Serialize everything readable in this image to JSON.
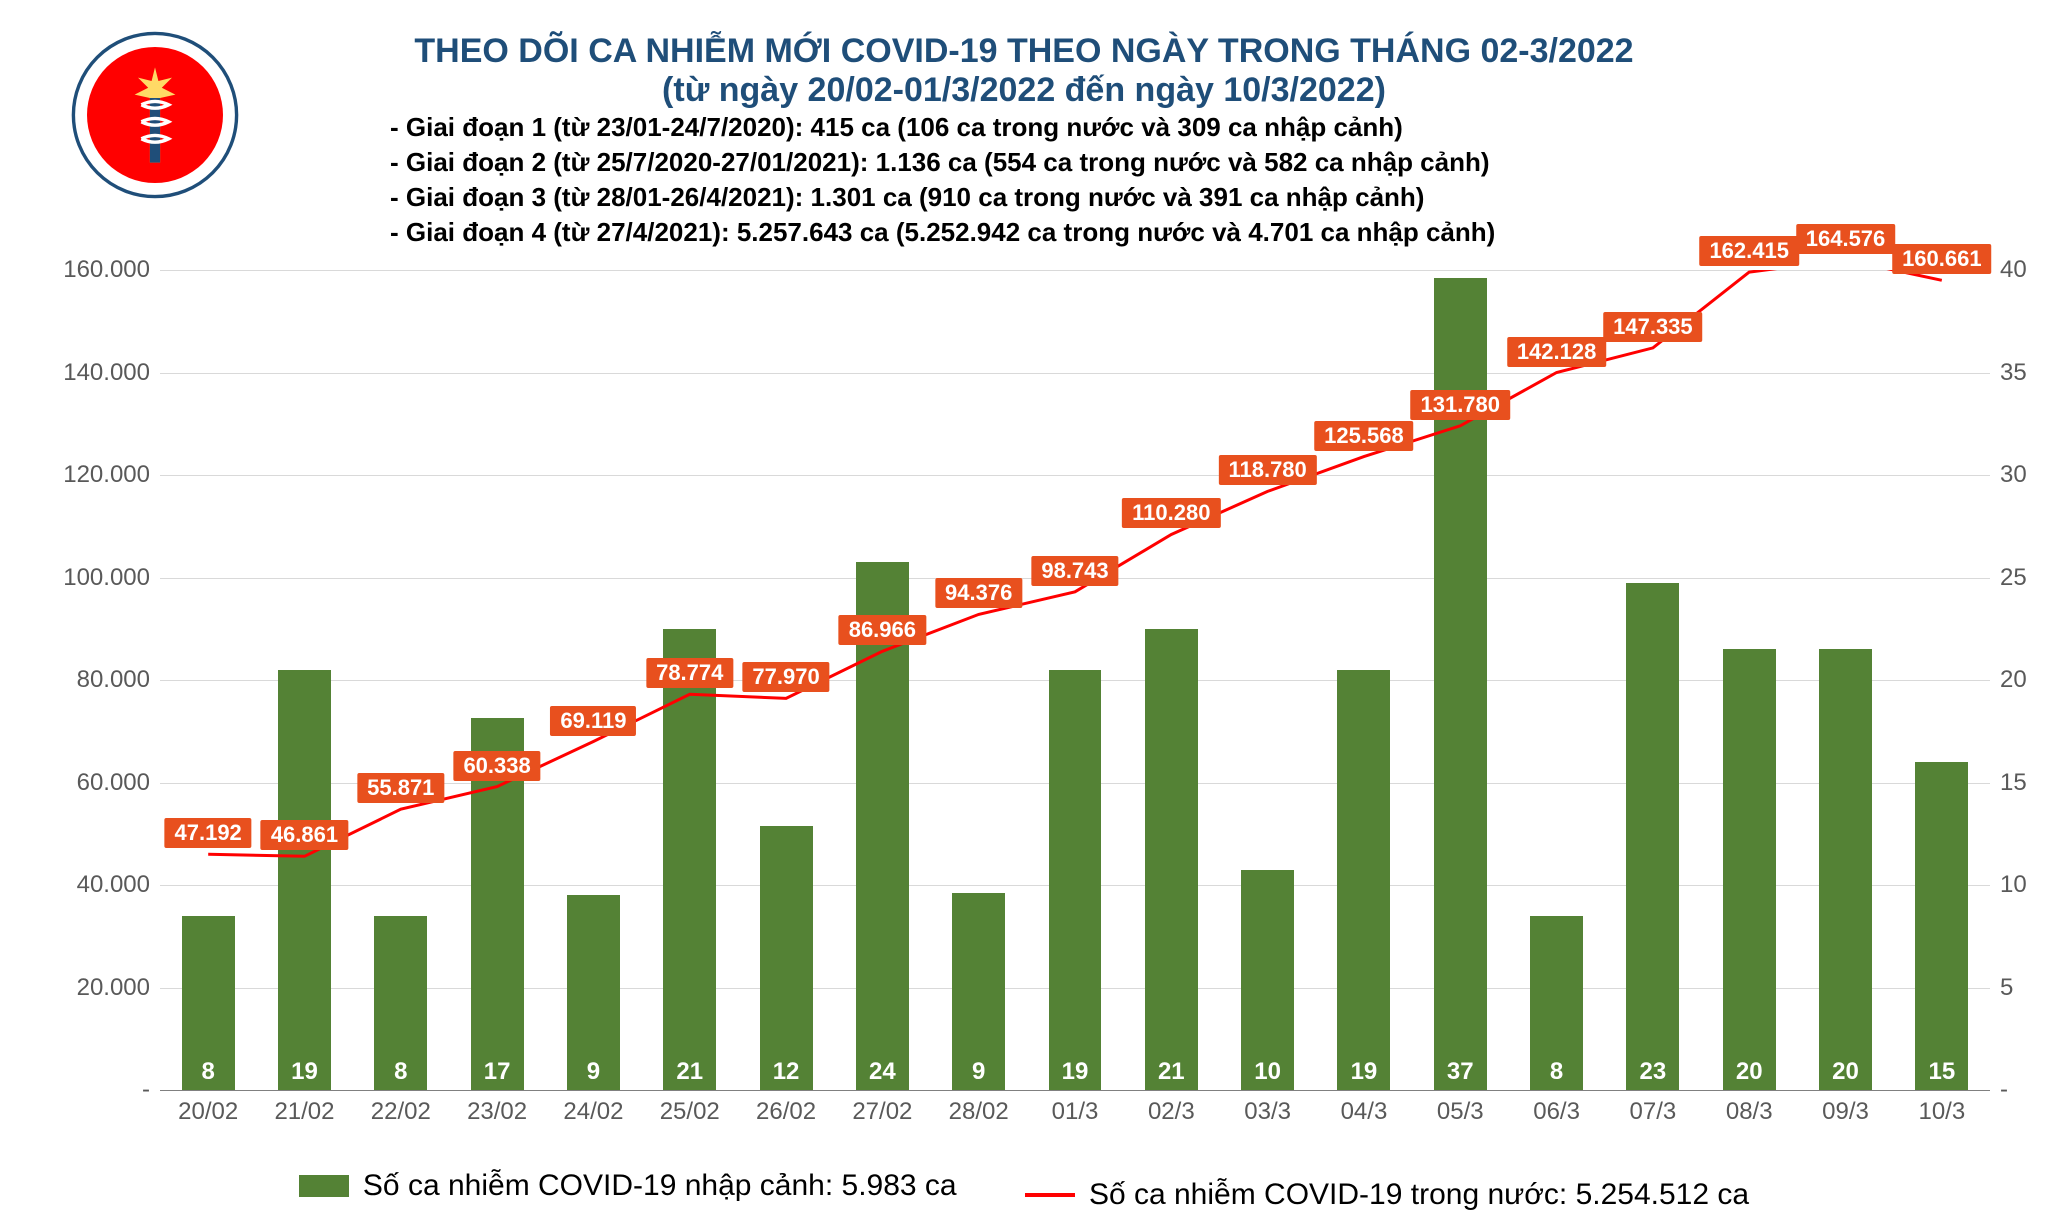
{
  "title_line1": "THEO DÕI CA NHIỄM MỚI COVID-19 THEO NGÀY TRONG THÁNG 02-3/2022",
  "title_line2": "(từ ngày 20/02-01/3/2022 đến ngày 10/3/2022)",
  "title_color": "#1f4e79",
  "title_fontsize": 34,
  "notes": [
    "- Giai đoạn 1 (từ 23/01-24/7/2020): 415 ca (106 ca trong nước và 309 ca nhập cảnh)",
    "- Giai đoạn 2 (từ 25/7/2020-27/01/2021): 1.136 ca (554 ca trong nước và 582 ca nhập cảnh)",
    "- Giai đoạn 3 (từ 28/01-26/4/2021): 1.301 ca (910 ca trong nước và 391 ca nhập cảnh)",
    "- Giai đoạn 4 (từ 27/4/2021): 5.257.643 ca (5.252.942 ca trong nước và 4.701 ca nhập cảnh)"
  ],
  "notes_fontsize": 26,
  "notes_color": "#000000",
  "chart": {
    "type": "combo-bar-line",
    "background_color": "#ffffff",
    "grid_color": "#d9d9d9",
    "axis_label_color": "#595959",
    "axis_fontsize": 24,
    "categories": [
      "20/02",
      "21/02",
      "22/02",
      "23/02",
      "24/02",
      "25/02",
      "26/02",
      "27/02",
      "28/02",
      "01/3",
      "02/3",
      "03/3",
      "04/3",
      "05/3",
      "06/3",
      "07/3",
      "08/3",
      "09/3",
      "10/3"
    ],
    "bars": {
      "color": "#548235",
      "width_ratio": 0.55,
      "value_label_color": "#ffffff",
      "value_label_fontsize": 24,
      "left_axis": {
        "min": 0,
        "max": 160000,
        "tick_step": 20000,
        "tick_labels": [
          "-",
          "20.000",
          "40.000",
          "60.000",
          "80.000",
          "100.000",
          "120.000",
          "140.000",
          "160.000"
        ]
      },
      "values_display": [
        "8",
        "19",
        "8",
        "17",
        "9",
        "21",
        "12",
        "24",
        "9",
        "19",
        "21",
        "10",
        "19",
        "37",
        "8",
        "23",
        "20",
        "20",
        "15"
      ],
      "heights": [
        34000,
        82000,
        34000,
        72500,
        38000,
        90000,
        51500,
        103000,
        38500,
        82000,
        90000,
        43000,
        82000,
        158500,
        34000,
        99000,
        86000,
        86000,
        64000
      ]
    },
    "line": {
      "color": "#ff0000",
      "line_width": 3,
      "label_bg": "#e8501e",
      "label_color": "#ffffff",
      "label_fontsize": 22,
      "right_axis": {
        "min": 0,
        "max": 40,
        "tick_step": 5,
        "tick_labels": [
          "-",
          "5",
          "10",
          "15",
          "20",
          "25",
          "30",
          "35",
          "40"
        ]
      },
      "values_display": [
        "47.192",
        "46.861",
        "55.871",
        "60.338",
        "69.119",
        "78.774",
        "77.970",
        "86.966",
        "94.376",
        "98.743",
        "110.280",
        "118.780",
        "125.568",
        "131.780",
        "142.128",
        "147.335",
        "162.415",
        "164.576",
        "160.661"
      ],
      "y_positions": [
        11.5,
        11.4,
        13.7,
        14.8,
        17.0,
        19.3,
        19.1,
        21.4,
        23.2,
        24.3,
        27.1,
        29.2,
        30.9,
        32.4,
        35.0,
        36.2,
        39.9,
        40.5,
        39.5
      ]
    }
  },
  "legend": {
    "bar_label": "Số ca nhiễm COVID-19 nhập cảnh: 5.983 ca",
    "line_label": "Số ca nhiễm COVID-19 trong nước: 5.254.512 ca",
    "fontsize": 30,
    "bar_color": "#548235",
    "line_color": "#ff0000"
  }
}
